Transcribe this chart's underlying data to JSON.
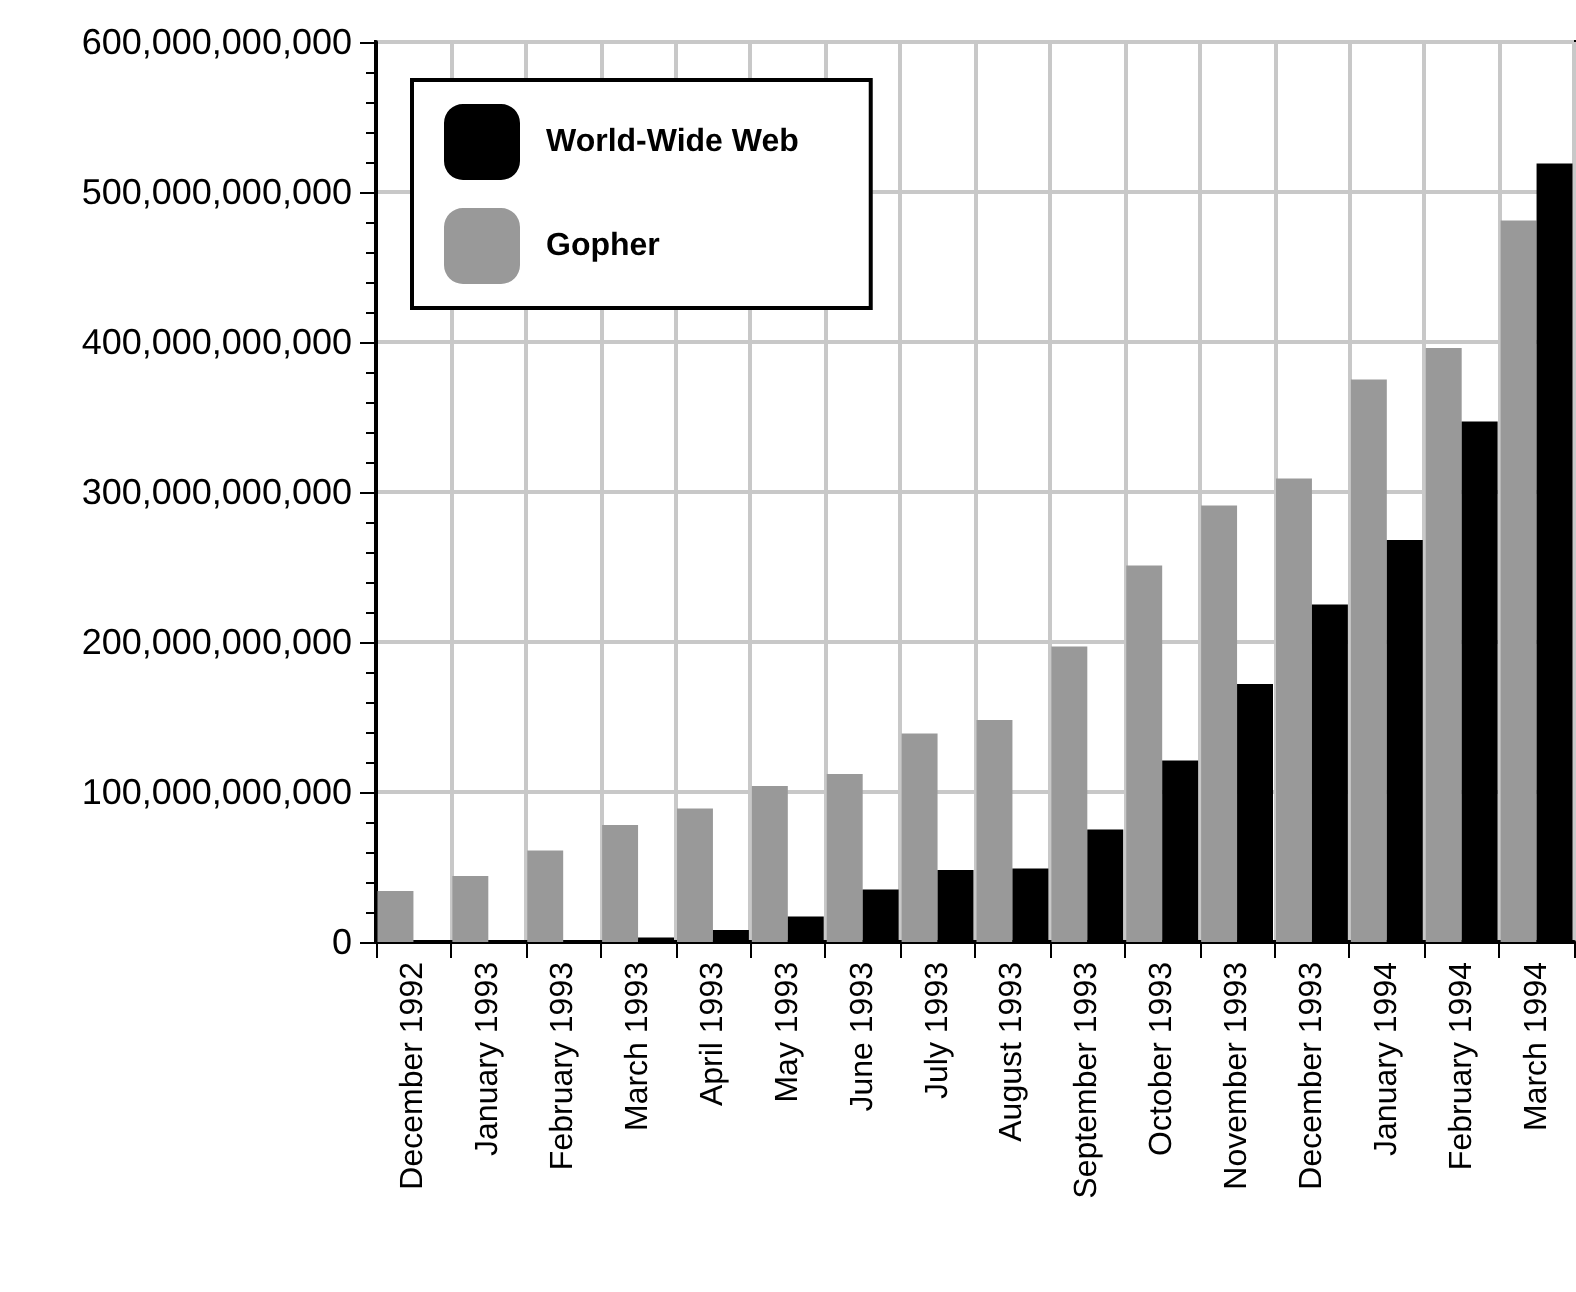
{
  "chart_data": {
    "type": "bar",
    "categories": [
      "December 1992",
      "January 1993",
      "February 1993",
      "March 1993",
      "April 1993",
      "May 1993",
      "June 1993",
      "July 1993",
      "August 1993",
      "September 1993",
      "October 1993",
      "November 1993",
      "December 1993",
      "January 1994",
      "February 1994",
      "March 1994"
    ],
    "series": [
      {
        "name": "World-Wide Web",
        "color": "#000000",
        "values": [
          null,
          null,
          null,
          3000000000,
          8000000000,
          17000000000,
          35000000000,
          48000000000,
          49000000000,
          75000000000,
          121000000000,
          172000000000,
          225000000000,
          268000000000,
          347000000000,
          519000000000
        ]
      },
      {
        "name": "Gopher",
        "color": "#999999",
        "values": [
          34000000000,
          44000000000,
          61000000000,
          78000000000,
          89000000000,
          104000000000,
          112000000000,
          139000000000,
          148000000000,
          197000000000,
          251000000000,
          291000000000,
          309000000000,
          375000000000,
          396000000000,
          481000000000
        ]
      }
    ],
    "ylim": [
      0,
      600000000000
    ],
    "yticks": [
      {
        "value": 0,
        "label": "0"
      },
      {
        "value": 100000000000,
        "label": "100,000,000,000"
      },
      {
        "value": 200000000000,
        "label": "200,000,000,000"
      },
      {
        "value": 300000000000,
        "label": "300,000,000,000"
      },
      {
        "value": 400000000000,
        "label": "400,000,000,000"
      },
      {
        "value": 500000000000,
        "label": "500,000,000,000"
      },
      {
        "value": 600000000000,
        "label": "600,000,000,000"
      }
    ],
    "grid": true,
    "legend": "top left"
  }
}
